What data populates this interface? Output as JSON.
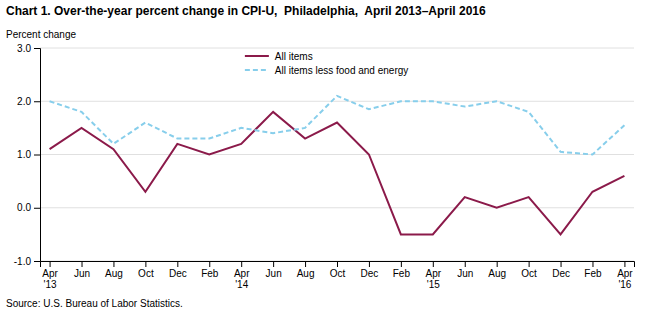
{
  "chart_data": {
    "type": "line",
    "title": "Chart 1. Over-the-year percent change in CPI-U,  Philadelphia,  April 2013–April 2016",
    "ylabel": "Percent change",
    "source": "Source: U.S. Bureau of Labor Statistics.",
    "categories": [
      "Apr\n'13",
      "Jun",
      "Aug",
      "Oct",
      "Dec",
      "Feb",
      "Apr\n'14",
      "Jun",
      "Aug",
      "Oct",
      "Dec",
      "Feb",
      "Apr\n'15",
      "Jun",
      "Aug",
      "Oct",
      "Dec",
      "Feb",
      "Apr\n'16"
    ],
    "series": [
      {
        "name": "All items",
        "color": "#8B1A4A",
        "line_style": "solid",
        "values": [
          1.1,
          1.5,
          1.1,
          0.3,
          1.2,
          1.0,
          1.2,
          1.8,
          1.3,
          1.6,
          1.0,
          -0.5,
          -0.5,
          0.2,
          0.0,
          0.2,
          -0.5,
          0.3,
          0.6
        ]
      },
      {
        "name": "All items less food and energy",
        "color": "#87CEEB",
        "line_style": "dashed",
        "values": [
          2.0,
          1.8,
          1.2,
          1.6,
          1.3,
          1.3,
          1.5,
          1.4,
          1.5,
          2.1,
          1.85,
          2.0,
          2.0,
          1.9,
          2.0,
          1.8,
          1.05,
          1.0,
          1.55
        ]
      }
    ],
    "ylim": [
      -1.0,
      3.0
    ],
    "yticks": [
      {
        "value": -1.0,
        "label": "-1.0"
      },
      {
        "value": 0.0,
        "label": "0.0"
      },
      {
        "value": 1.0,
        "label": "1.0"
      },
      {
        "value": 2.0,
        "label": "2.0"
      },
      {
        "value": 3.0,
        "label": "3.0"
      }
    ],
    "grid": true,
    "legend": "upper right"
  }
}
